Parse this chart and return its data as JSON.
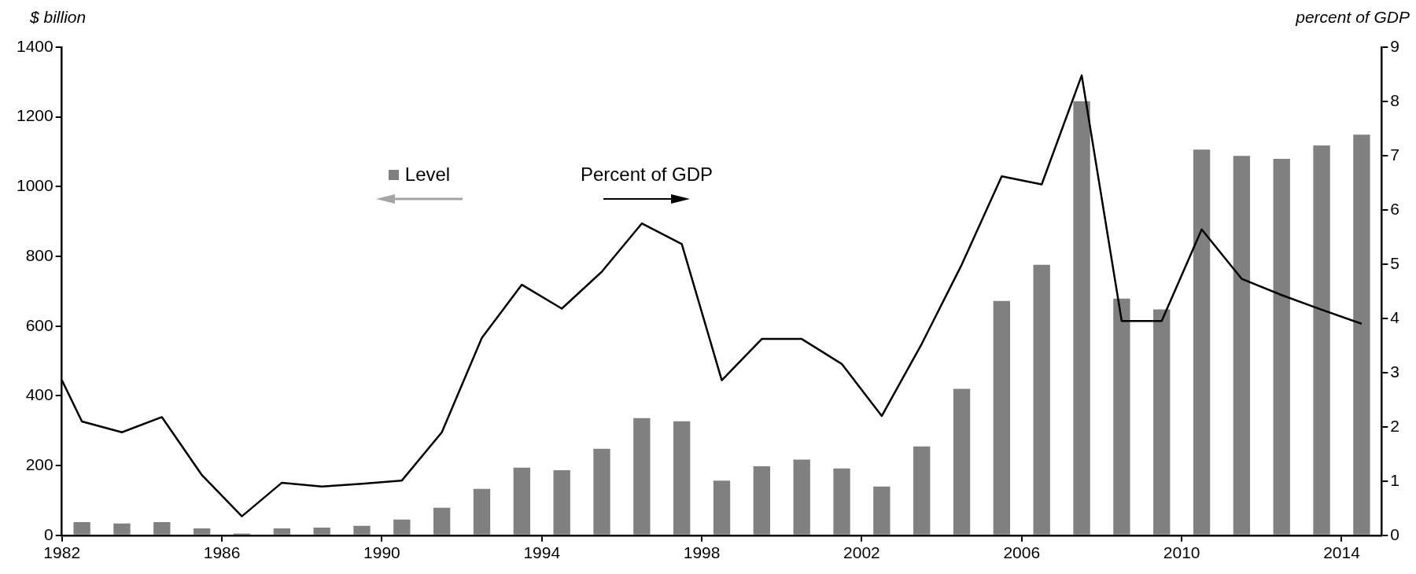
{
  "chart_data": {
    "type": "bar",
    "ylabel": "$ billion",
    "y2label": "percent of GDP",
    "xlim": [
      1982,
      2015
    ],
    "xticks": [
      1982,
      1986,
      1990,
      1994,
      1998,
      2002,
      2006,
      2010,
      2014
    ],
    "ylim": [
      0,
      1400
    ],
    "yticks": [
      0,
      200,
      400,
      600,
      800,
      1000,
      1200,
      1400
    ],
    "y2lim": [
      0,
      9
    ],
    "y2ticks": [
      0,
      1,
      2,
      3,
      4,
      5,
      6,
      7,
      8,
      9
    ],
    "grid": false,
    "legend": "top",
    "series": [
      {
        "name": "Level",
        "color": "#808080",
        "x": [
          1982.5,
          1983.5,
          1984.5,
          1985.5,
          1986.5,
          1987.5,
          1988.5,
          1989.5,
          1990.5,
          1991.5,
          1992.5,
          1993.5,
          1994.5,
          1995.5,
          1996.5,
          1997.5,
          1998.5,
          1999.5,
          2000.5,
          2001.5,
          2002.5,
          2003.5,
          2004.5,
          2005.5,
          2006.5,
          2007.5,
          2008.5,
          2009.5,
          2010.5,
          2011.5,
          2012.5,
          2013.5,
          2014.5
        ],
        "values": [
          38,
          34,
          38,
          20,
          5,
          20,
          22,
          27,
          45,
          79,
          133,
          194,
          187,
          248,
          336,
          327,
          157,
          198,
          217,
          192,
          140,
          255,
          420,
          672,
          776,
          1245,
          679,
          648,
          1106,
          1088,
          1080,
          1118,
          1149
        ]
      },
      {
        "name": "Percent of GDP",
        "type": "line",
        "axis": "y2",
        "color": "#000000",
        "x": [
          1982,
          1982.5,
          1983.5,
          1984.5,
          1985.5,
          1986.5,
          1987.5,
          1988.5,
          1989.5,
          1990.5,
          1991.5,
          1992.5,
          1993.5,
          1994.5,
          1995.5,
          1996.5,
          1997.5,
          1998.5,
          1999.5,
          2000.5,
          2001.5,
          2002.5,
          2003.5,
          2004.5,
          2005.5,
          2006.5,
          2007.5,
          2008.5,
          2009.5,
          2010.5,
          2011.5,
          2012.5,
          2013.5,
          2014.5
        ],
        "values": [
          2.86,
          2.1,
          1.9,
          2.18,
          1.11,
          0.35,
          0.97,
          0.9,
          0.95,
          1.01,
          1.9,
          3.64,
          4.62,
          4.18,
          4.86,
          5.75,
          5.37,
          2.86,
          3.62,
          3.62,
          3.16,
          2.2,
          3.53,
          4.99,
          6.62,
          6.47,
          8.48,
          3.95,
          3.95,
          5.64,
          4.73,
          4.43,
          4.16,
          3.9
        ]
      }
    ]
  }
}
